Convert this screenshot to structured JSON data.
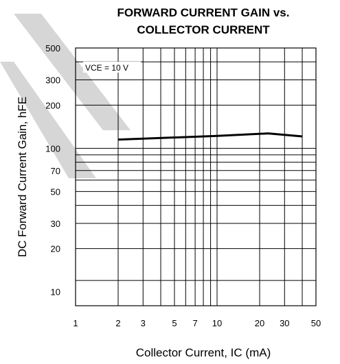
{
  "chart_data": {
    "type": "line",
    "title_lines": [
      "FORWARD CURRENT GAIN vs.",
      "COLLECTOR CURRENT"
    ],
    "xlabel": "Collector Current, IC (mA)",
    "ylabel": "DC Forward Current Gain, hFE",
    "x_scale": "log",
    "y_scale": "log",
    "xlim": [
      1,
      50
    ],
    "ylim": [
      8,
      500
    ],
    "x_ticks": [
      1,
      2,
      3,
      5,
      7,
      10,
      20,
      30,
      50
    ],
    "x_tick_labels": [
      "1",
      "2",
      "3",
      "5",
      "7",
      "10",
      "20",
      "30",
      "50"
    ],
    "y_ticks": [
      10,
      20,
      30,
      50,
      70,
      100,
      200,
      300,
      500
    ],
    "y_tick_labels": [
      "10",
      "20",
      "30",
      "50",
      "70",
      "100",
      "200",
      "300",
      "500"
    ],
    "x_grid": [
      2,
      3,
      4,
      5,
      6,
      7,
      8,
      9,
      10,
      20,
      30,
      40
    ],
    "y_grid": [
      12,
      20,
      30,
      40,
      50,
      60,
      70,
      80,
      90,
      100,
      200,
      300,
      400
    ],
    "grid": true,
    "annotation": "VCE = 10 V",
    "series": [
      {
        "x": [
          2,
          10,
          23,
          40
        ],
        "y": [
          115,
          122,
          127,
          121
        ]
      }
    ],
    "watermark_color": "#d6d6d6"
  }
}
